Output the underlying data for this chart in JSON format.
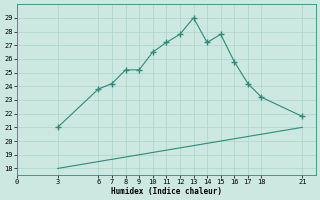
{
  "xlabel": "Humidex (Indice chaleur)",
  "line1_x": [
    3,
    6,
    7,
    8,
    9,
    10,
    11,
    12,
    13,
    14,
    15,
    16,
    17,
    18,
    21
  ],
  "line1_y": [
    21,
    23.8,
    24.2,
    25.2,
    25.2,
    26.5,
    27.2,
    27.8,
    29,
    27.2,
    27.8,
    25.8,
    24.2,
    23.2,
    21.8
  ],
  "line2_x": [
    3,
    21
  ],
  "line2_y": [
    18,
    21
  ],
  "line_color": "#2e8b7a",
  "bg_color": "#cde8e0",
  "grid_color": "#b0d8cf",
  "xlim": [
    0,
    22
  ],
  "ylim": [
    17.5,
    30
  ],
  "xticks": [
    0,
    3,
    6,
    7,
    8,
    9,
    10,
    11,
    12,
    13,
    14,
    15,
    16,
    17,
    18,
    21
  ],
  "yticks": [
    18,
    19,
    20,
    21,
    22,
    23,
    24,
    25,
    26,
    27,
    28,
    29
  ],
  "marker": "+"
}
